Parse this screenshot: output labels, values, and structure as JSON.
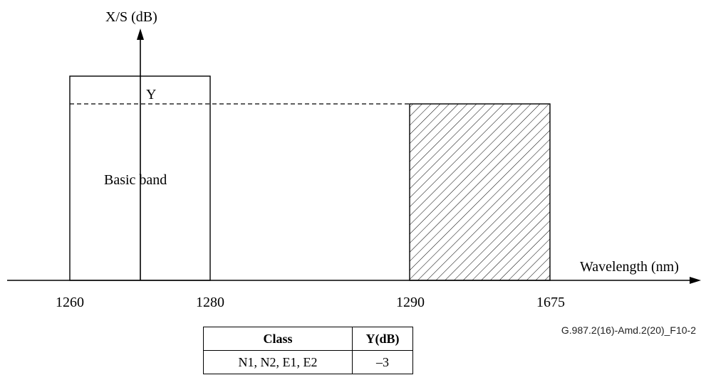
{
  "diagram": {
    "y_axis_label": "X/S (dB)",
    "x_axis_label": "Wavelength (nm)",
    "basic_band_label": "Basic band",
    "y_marker_label": "Y",
    "ticks": [
      "1260",
      "1280",
      "1290",
      "1675"
    ],
    "figure_id": "G.987.2(16)-Amd.2(20)_F10-2"
  },
  "table": {
    "headers": [
      "Class",
      "Y(dB)"
    ],
    "rows": [
      [
        "N1, N2, E1, E2",
        "–3"
      ]
    ]
  }
}
